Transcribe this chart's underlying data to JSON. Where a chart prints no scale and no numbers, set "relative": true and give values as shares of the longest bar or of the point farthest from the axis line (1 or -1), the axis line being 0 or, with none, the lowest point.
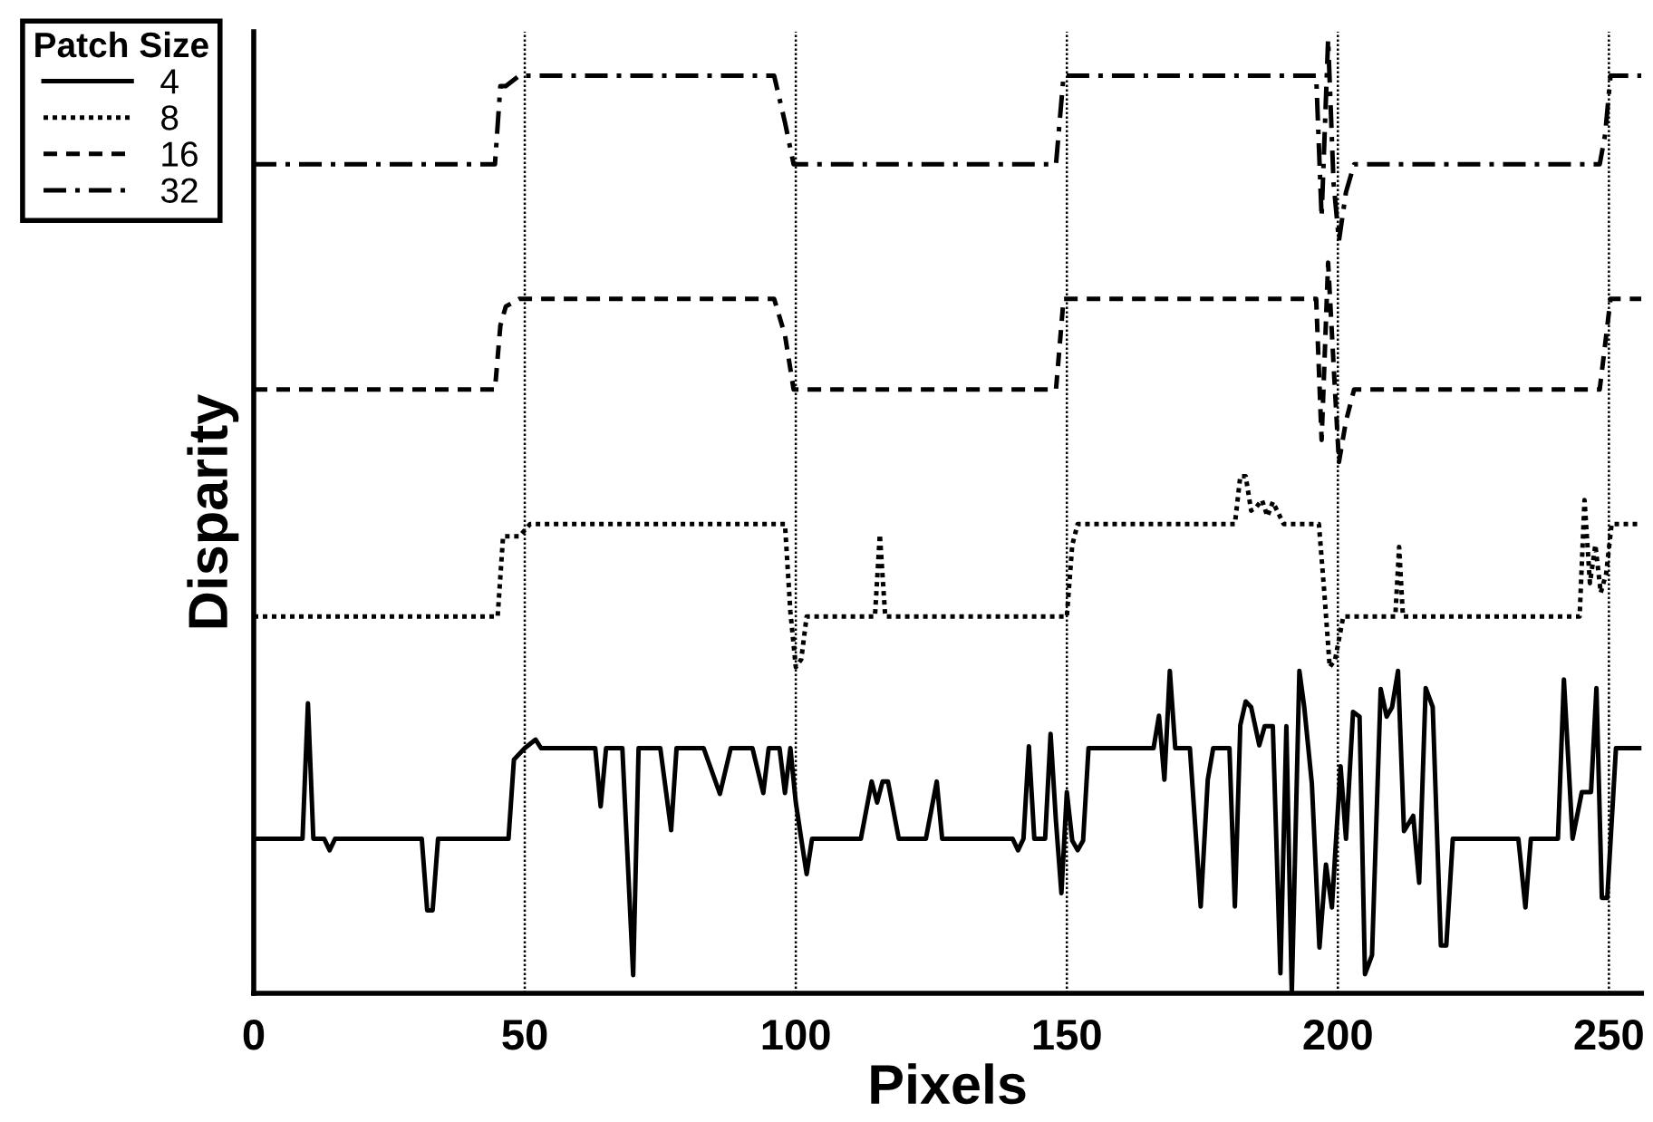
{
  "chart_data": {
    "type": "line",
    "relative": true,
    "xlabel": "Pixels",
    "ylabel": "Disparity",
    "legend_title": "Patch Size",
    "legend": "top left",
    "tick_labels": "x",
    "grid": false,
    "marker": "none",
    "xlim": [
      0,
      256
    ],
    "xticks": [
      0,
      50,
      100,
      150,
      200,
      250
    ],
    "ref_lines": [
      {
        "axis": "x",
        "value": 50,
        "color": "#000000",
        "line_style": "dotted"
      },
      {
        "axis": "x",
        "value": 100,
        "color": "#000000",
        "line_style": "dotted"
      },
      {
        "axis": "x",
        "value": 150,
        "color": "#000000",
        "line_style": "dotted"
      },
      {
        "axis": "x",
        "value": 200,
        "color": "#000000",
        "line_style": "dotted"
      },
      {
        "axis": "x",
        "value": 250,
        "color": "#000000",
        "line_style": "dotted"
      }
    ],
    "series": [
      {
        "name": "4",
        "color": "#000000",
        "line_style": "solid",
        "x": [
          0,
          9,
          10,
          11,
          13,
          14,
          15,
          31,
          32,
          33,
          34,
          47,
          48,
          50,
          52,
          53,
          63,
          64,
          65,
          68,
          70,
          71,
          75,
          77,
          78,
          83,
          86,
          88,
          92,
          94,
          95,
          97,
          98,
          99,
          100,
          101,
          102,
          103,
          112,
          114,
          115,
          116,
          117,
          119,
          124,
          126,
          127,
          140,
          141,
          142,
          143,
          144,
          146,
          147,
          148,
          149,
          150,
          151,
          152,
          153,
          154,
          166,
          167,
          168,
          169,
          170,
          172.7,
          174.7,
          176,
          177,
          180,
          181,
          182,
          183,
          184,
          185.5,
          186.5,
          188,
          189.4,
          190.5,
          191.5,
          192.9,
          193.8,
          195.2,
          196.6,
          197.8,
          198.9,
          200.5,
          201.5,
          202.8,
          204,
          205,
          206.3,
          207.9,
          209,
          210,
          211.1,
          212.2,
          213.9,
          215,
          216.2,
          217.5,
          219,
          220,
          221.2,
          233.3,
          234.6,
          235.6,
          240.6,
          241.7,
          243.3,
          245,
          246.7,
          247.7,
          248.7,
          249.7,
          251.3,
          256
        ],
        "values": [
          0.162,
          0.162,
          0.304,
          0.162,
          0.162,
          0.15,
          0.162,
          0.162,
          0.087,
          0.087,
          0.162,
          0.162,
          0.245,
          0.257,
          0.266,
          0.257,
          0.257,
          0.196,
          0.257,
          0.257,
          0.019,
          0.257,
          0.257,
          0.171,
          0.257,
          0.257,
          0.209,
          0.257,
          0.257,
          0.21,
          0.257,
          0.257,
          0.21,
          0.257,
          0.2,
          0.162,
          0.125,
          0.162,
          0.162,
          0.222,
          0.2,
          0.222,
          0.222,
          0.162,
          0.162,
          0.222,
          0.162,
          0.162,
          0.15,
          0.162,
          0.259,
          0.162,
          0.162,
          0.272,
          0.18,
          0.105,
          0.211,
          0.16,
          0.15,
          0.16,
          0.257,
          0.257,
          0.291,
          0.224,
          0.338,
          0.257,
          0.257,
          0.091,
          0.224,
          0.257,
          0.257,
          0.091,
          0.281,
          0.306,
          0.3,
          0.26,
          0.28,
          0.28,
          0.021,
          0.28,
          0.0,
          0.338,
          0.3,
          0.22,
          0.048,
          0.135,
          0.09,
          0.238,
          0.162,
          0.295,
          0.29,
          0.02,
          0.04,
          0.319,
          0.29,
          0.3,
          0.338,
          0.17,
          0.186,
          0.116,
          0.32,
          0.3,
          0.05,
          0.05,
          0.162,
          0.162,
          0.09,
          0.162,
          0.162,
          0.329,
          0.162,
          0.211,
          0.211,
          0.32,
          0.1,
          0.1,
          0.257,
          0.257
        ]
      },
      {
        "name": "8",
        "color": "#000000",
        "line_style": "dotted",
        "x": [
          0,
          45,
          46,
          49,
          51,
          98,
          99,
          100,
          101,
          102,
          114.6,
          115.5,
          116.5,
          150,
          151,
          152,
          181,
          182,
          183,
          184,
          185,
          186,
          187,
          188,
          190,
          196.5,
          197.5,
          198.5,
          199.5,
          201,
          203,
          210.6,
          211.3,
          212,
          244.6,
          245.5,
          246.5,
          247.5,
          248.5,
          249.5,
          250.5,
          256
        ],
        "values": [
          0.395,
          0.395,
          0.479,
          0.479,
          0.492,
          0.492,
          0.4,
          0.342,
          0.35,
          0.395,
          0.395,
          0.481,
          0.395,
          0.395,
          0.47,
          0.492,
          0.492,
          0.542,
          0.542,
          0.506,
          0.51,
          0.517,
          0.5,
          0.515,
          0.492,
          0.492,
          0.42,
          0.342,
          0.35,
          0.395,
          0.395,
          0.395,
          0.468,
          0.395,
          0.395,
          0.517,
          0.43,
          0.47,
          0.42,
          0.44,
          0.492,
          0.492
        ]
      },
      {
        "name": "16",
        "color": "#000000",
        "line_style": "dashed",
        "x": [
          0,
          44.5,
          45.5,
          46.5,
          49,
          96,
          98,
          99.6,
          148,
          149.4,
          196,
          197,
          198.2,
          199.2,
          200.2,
          201.5,
          203,
          248.3,
          249.3,
          250.3,
          256
        ],
        "values": [
          0.633,
          0.633,
          0.7,
          0.72,
          0.728,
          0.728,
          0.69,
          0.633,
          0.633,
          0.728,
          0.728,
          0.58,
          0.766,
          0.66,
          0.557,
          0.6,
          0.633,
          0.633,
          0.68,
          0.728,
          0.728
        ]
      },
      {
        "name": "32",
        "color": "#000000",
        "line_style": "dashdot",
        "x": [
          0,
          44.5,
          45.5,
          46.5,
          49,
          96,
          98,
          99.6,
          148,
          149.4,
          196,
          197,
          198.2,
          199.2,
          200.2,
          201.5,
          203,
          248.3,
          249.3,
          250.3,
          256
        ],
        "values": [
          0.869,
          0.869,
          0.951,
          0.951,
          0.962,
          0.962,
          0.913,
          0.869,
          0.869,
          0.962,
          0.962,
          0.814,
          1.0,
          0.85,
          0.789,
          0.84,
          0.869,
          0.869,
          0.9,
          0.962,
          0.962
        ]
      }
    ]
  }
}
